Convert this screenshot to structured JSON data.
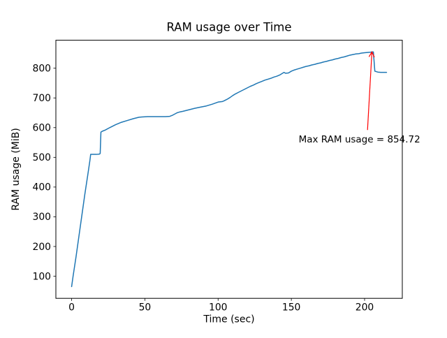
{
  "chart_data": {
    "type": "line",
    "title": "RAM usage over Time",
    "xlabel": "Time (sec)",
    "ylabel": "RAM usage (MiB)",
    "xlim": [
      -10.75,
      225.75
    ],
    "ylim": [
      25.5,
      894.2
    ],
    "xticks": [
      0,
      50,
      100,
      150,
      200
    ],
    "yticks": [
      100,
      200,
      300,
      400,
      500,
      600,
      700,
      800
    ],
    "grid": false,
    "legend": "none",
    "background": "#ffffff",
    "axes_color": "#000000",
    "line_color": "#1f77b4",
    "series": [
      {
        "name": "RAM usage",
        "x": [
          0,
          1,
          3,
          5,
          7,
          9,
          11,
          12.5,
          13,
          15,
          17,
          19,
          19.5,
          20,
          21,
          23,
          26,
          30,
          34,
          38,
          42,
          46,
          48,
          52,
          56,
          60,
          64,
          67,
          69,
          72,
          74,
          76,
          80,
          84,
          88,
          92,
          96,
          100,
          103,
          104,
          106,
          108,
          110,
          112,
          114,
          116,
          118,
          120,
          122,
          124,
          126,
          128,
          130,
          132,
          134,
          136,
          138,
          140,
          142,
          144,
          145,
          146,
          148,
          150,
          152,
          154,
          156,
          158,
          160,
          162,
          164,
          166,
          168,
          170,
          172,
          174,
          176,
          178,
          180,
          182,
          184,
          186,
          188,
          190,
          192,
          194,
          196,
          198,
          200,
          202,
          204,
          205,
          206,
          207,
          209,
          211,
          213,
          215
        ],
        "y": [
          65,
          100,
          165,
          235,
          305,
          375,
          440,
          490,
          510,
          510,
          510,
          511,
          513,
          585,
          588,
          592,
          600,
          610,
          618,
          624,
          630,
          635,
          636,
          637,
          637,
          637,
          637,
          638,
          642,
          650,
          653,
          655,
          660,
          665,
          669,
          673,
          679,
          686,
          688,
          690,
          695,
          701,
          708,
          714,
          719,
          724,
          729,
          734,
          739,
          743,
          748,
          752,
          756,
          760,
          763,
          766,
          770,
          773,
          777,
          783,
          786,
          783,
          784,
          790,
          794,
          797,
          800,
          803,
          806,
          808,
          811,
          813,
          816,
          818,
          821,
          823,
          826,
          828,
          831,
          833,
          836,
          838,
          841,
          844,
          846,
          848,
          849,
          851,
          852,
          853,
          854,
          854.72,
          854.72,
          790,
          787,
          786,
          786,
          786
        ]
      }
    ],
    "annotation": {
      "text": "Max RAM usage = 854.72",
      "color": "#ff0000",
      "xy": [
        205,
        854.72
      ],
      "arrow_from": [
        202,
        592
      ],
      "text_xy": [
        155,
        550
      ],
      "max_value": 854.72
    }
  }
}
